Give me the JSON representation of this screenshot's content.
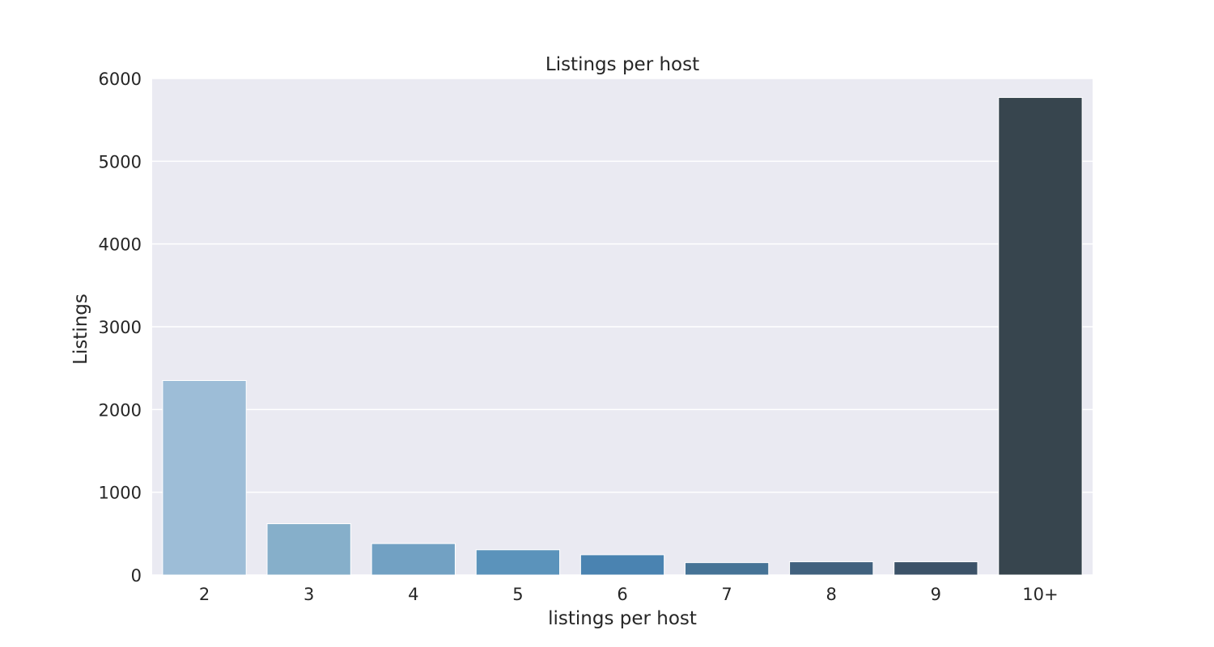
{
  "chart_data": {
    "type": "bar",
    "title": "Listings per host",
    "xlabel": "listings per host",
    "ylabel": "Listings",
    "categories": [
      "2",
      "3",
      "4",
      "5",
      "6",
      "7",
      "8",
      "9",
      "10+"
    ],
    "values": [
      2350,
      620,
      380,
      305,
      245,
      150,
      160,
      160,
      5770
    ],
    "ylim": [
      0,
      6000
    ],
    "yticks": [
      0,
      1000,
      2000,
      3000,
      4000,
      5000,
      6000
    ],
    "grid": true,
    "colors": [
      "#9dbdd7",
      "#86afca",
      "#72a1c3",
      "#5b93bb",
      "#4a83b1",
      "#467396",
      "#41617e",
      "#3c5268",
      "#37454e"
    ],
    "background": "#eaeaf2"
  }
}
